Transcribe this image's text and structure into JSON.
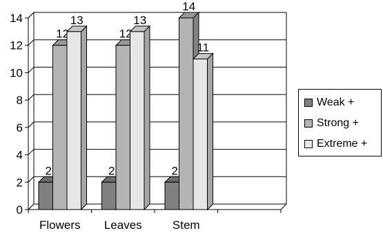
{
  "chart_data": {
    "type": "bar",
    "categories": [
      "Flowers",
      "Leaves",
      "Stem",
      ""
    ],
    "series": [
      {
        "name": "Weak +",
        "values": [
          2,
          2,
          2,
          null
        ],
        "color": "#808080"
      },
      {
        "name": "Strong +",
        "values": [
          12,
          12,
          14,
          null
        ],
        "color": "#b4b4b4"
      },
      {
        "name": "Extreme +",
        "values": [
          13,
          13,
          11,
          null
        ],
        "color": "#e6e6e6"
      }
    ],
    "yticks": [
      "0",
      "2",
      "4",
      "6",
      "8",
      "10",
      "12",
      "14"
    ],
    "ylim": [
      0,
      14
    ],
    "grid": true,
    "legend_position": "right",
    "three_d": true
  }
}
